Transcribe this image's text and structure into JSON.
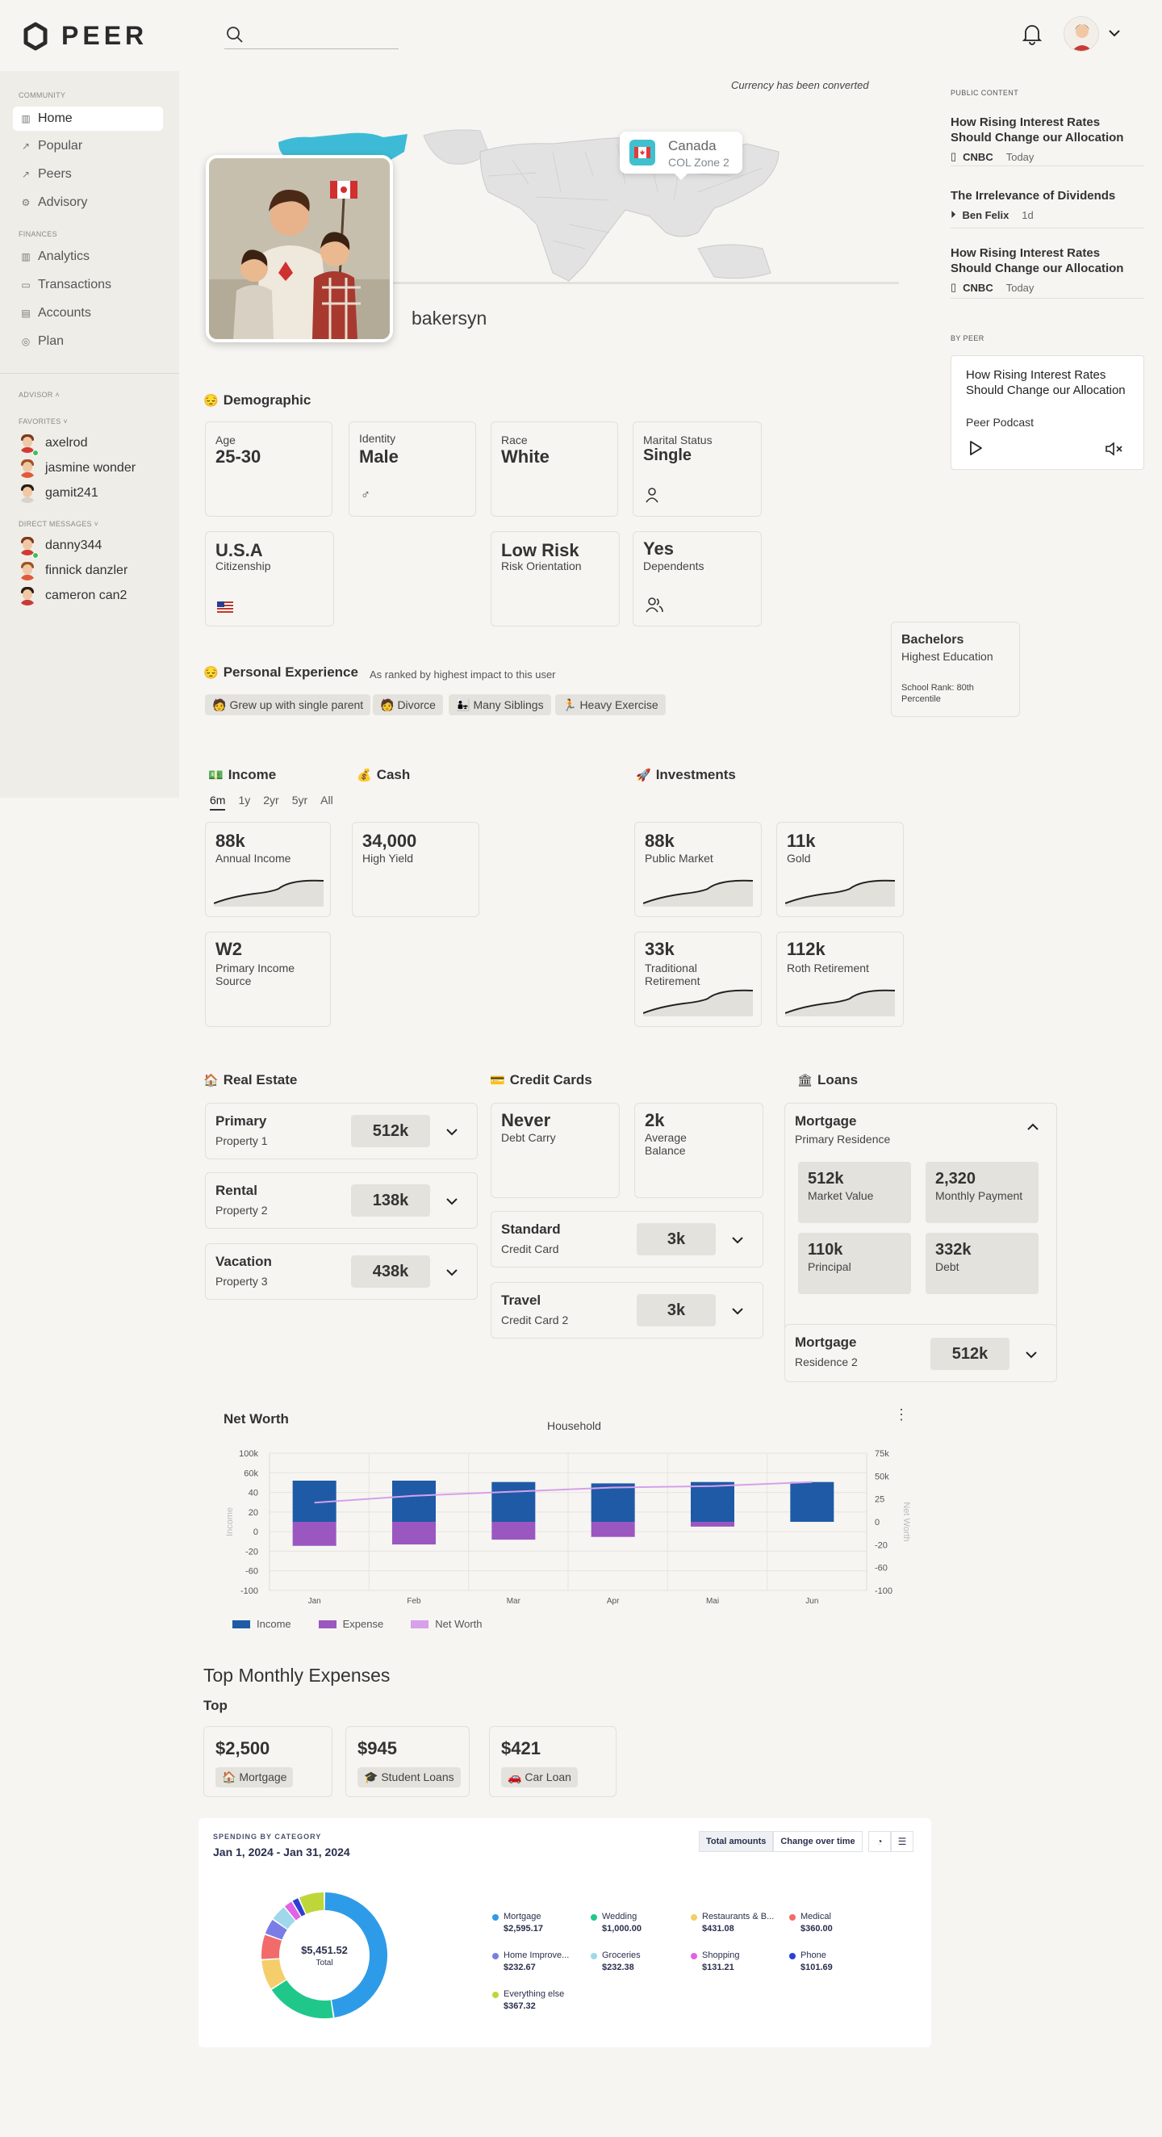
{
  "app": {
    "name": "PEER"
  },
  "header": {
    "search_placeholder": ""
  },
  "sidebar": {
    "community_label": "COMMUNITY",
    "community": [
      {
        "label": "Home",
        "icon": "bar-chart-icon",
        "active": true
      },
      {
        "label": "Popular",
        "icon": "trending-icon"
      },
      {
        "label": "Peers",
        "icon": "trending-icon"
      },
      {
        "label": "Advisory",
        "icon": "gear-icon"
      }
    ],
    "finances_label": "FINANCES",
    "finances": [
      {
        "label": "Analytics",
        "icon": "bar-chart-icon"
      },
      {
        "label": "Transactions",
        "icon": "card-icon"
      },
      {
        "label": "Accounts",
        "icon": "accounts-icon"
      },
      {
        "label": "Plan",
        "icon": "compass-icon"
      }
    ],
    "advisor_label": "ADVISOR",
    "favorites_label": "FAVORITES",
    "favorites": [
      "axelrod",
      "jasmine wonder",
      "gamit241"
    ],
    "dm_label": "DIRECT MESSAGES",
    "direct_messages": [
      "danny344",
      "finnick danzler",
      "cameron can2"
    ]
  },
  "profile": {
    "currency_note": "Currency has been converted",
    "country": "Canada",
    "col_zone": "COL Zone 2",
    "username": "bakersyn"
  },
  "demographic": {
    "title": "Demographic",
    "age_label": "Age",
    "age": "25-30",
    "identity_label": "Identity",
    "identity": "Male",
    "race_label": "Race",
    "race": "White",
    "marital_label": "Marital Status",
    "marital": "Single",
    "citizenship": "U.S.A",
    "citizenship_label": "Citizenship",
    "risk": "Low Risk",
    "risk_label": "Risk Orientation",
    "dependents": "Yes",
    "dependents_label": "Dependents",
    "education": "Bachelors",
    "education_label": "Highest Education",
    "school_rank": "School Rank: 80th Percentile"
  },
  "experience": {
    "title": "Personal Experience",
    "subtitle": "As ranked by highest impact to this user",
    "chips": [
      "Grew up with single parent",
      "Divorce",
      "Many Siblings",
      "Heavy Exercise"
    ]
  },
  "income": {
    "title": "Income",
    "tabs": [
      "6m",
      "1y",
      "2yr",
      "5yr",
      "All"
    ],
    "annual": "88k",
    "annual_label": "Annual Income",
    "source": "W2",
    "source_label": "Primary Income Source"
  },
  "cash": {
    "title": "Cash",
    "value": "34,000",
    "label": "High Yield"
  },
  "investments": {
    "title": "Investments",
    "items": [
      {
        "value": "88k",
        "label": "Public Market"
      },
      {
        "value": "11k",
        "label": "Gold"
      },
      {
        "value": "33k",
        "label": "Traditional Retirement"
      },
      {
        "value": "112k",
        "label": "Roth Retirement"
      }
    ]
  },
  "real_estate": {
    "title": "Real Estate",
    "items": [
      {
        "name": "Primary",
        "sub": "Property 1",
        "value": "512k"
      },
      {
        "name": "Rental",
        "sub": "Property 2",
        "value": "138k"
      },
      {
        "name": "Vacation",
        "sub": "Property 3",
        "value": "438k"
      }
    ]
  },
  "credit_cards": {
    "title": "Credit Cards",
    "carry": "Never",
    "carry_label": "Debt Carry",
    "balance": "2k",
    "balance_label": "Average Balance",
    "cards": [
      {
        "name": "Standard",
        "sub": "Credit Card",
        "value": "3k"
      },
      {
        "name": "Travel",
        "sub": "Credit Card 2",
        "value": "3k"
      }
    ]
  },
  "loans": {
    "title": "Loans",
    "mortgage1": {
      "name": "Mortgage",
      "sub": "Primary Residence"
    },
    "details": [
      {
        "value": "512k",
        "label": "Market Value"
      },
      {
        "value": "2,320",
        "label": "Monthly Payment"
      },
      {
        "value": "110k",
        "label": "Principal"
      },
      {
        "value": "332k",
        "label": "Debt"
      }
    ],
    "mortgage2": {
      "name": "Mortgage",
      "sub": "Residence 2",
      "value": "512k"
    }
  },
  "chart_data": {
    "type": "bar",
    "title": "Net Worth",
    "subtitle": "Household",
    "ylabel": "Income",
    "y2label": "Net Worth",
    "categories": [
      "Jan",
      "Feb",
      "Mar",
      "Apr",
      "Mai",
      "Jun"
    ],
    "y_ticks": [
      "100k",
      "60k",
      "40",
      "20",
      "0",
      "-20",
      "-60",
      "-100"
    ],
    "y2_ticks": [
      "75k",
      "50k",
      "25",
      "0",
      "-20",
      "-60",
      "-100"
    ],
    "ylim": [
      -100,
      100
    ],
    "series": [
      {
        "name": "Income",
        "color": "#1f5aa6",
        "values": [
          60,
          60,
          58,
          56,
          58,
          58
        ]
      },
      {
        "name": "Expense",
        "color": "#9b57c0",
        "values": [
          -35,
          -33,
          -26,
          -22,
          -7,
          0
        ]
      },
      {
        "name": "Net Worth",
        "color": "#d7a0ea",
        "values": [
          28,
          38,
          44,
          50,
          52,
          58
        ]
      }
    ]
  },
  "top_expenses": {
    "title": "Top Monthly Expenses",
    "subtitle": "Top",
    "items": [
      {
        "value": "$2,500",
        "label": "Mortgage",
        "emoji": "🏠"
      },
      {
        "value": "$945",
        "label": "Student Loans",
        "emoji": "🎓"
      },
      {
        "value": "$421",
        "label": "Car Loan",
        "emoji": "🚗"
      }
    ]
  },
  "spending": {
    "label": "SPENDING BY CATEGORY",
    "date": "Jan 1, 2024 - Jan 31, 2024",
    "tab_total": "Total amounts",
    "tab_change": "Change over time",
    "total": "$5,451.52",
    "total_label": "Total",
    "categories": [
      {
        "name": "Mortgage",
        "amount": "$2,595.17",
        "value": 2595.17,
        "color": "#2e9be8"
      },
      {
        "name": "Wedding",
        "amount": "$1,000.00",
        "value": 1000.0,
        "color": "#1fc88a"
      },
      {
        "name": "Restaurants & B...",
        "amount": "$431.08",
        "value": 431.08,
        "color": "#f5cd6a"
      },
      {
        "name": "Medical",
        "amount": "$360.00",
        "value": 360.0,
        "color": "#f26b6b"
      },
      {
        "name": "Home Improve...",
        "amount": "$232.67",
        "value": 232.67,
        "color": "#7b7de6"
      },
      {
        "name": "Groceries",
        "amount": "$232.38",
        "value": 232.38,
        "color": "#9ed8ea"
      },
      {
        "name": "Shopping",
        "amount": "$131.21",
        "value": 131.21,
        "color": "#e062e6"
      },
      {
        "name": "Phone",
        "amount": "$101.69",
        "value": 101.69,
        "color": "#2b3fd6"
      },
      {
        "name": "Everything else",
        "amount": "$367.32",
        "value": 367.32,
        "color": "#bfd63a"
      }
    ]
  },
  "right": {
    "public_label": "PUBLIC CONTENT",
    "articles": [
      {
        "title": "How Rising Interest Rates Should Change our Allocation",
        "source": "CNBC",
        "time": "Today",
        "icon": "document-icon"
      },
      {
        "title": "The Irrelevance of Dividends",
        "source": "Ben Felix",
        "time": "1d",
        "icon": "play-circle-icon"
      },
      {
        "title": "How Rising Interest Rates Should Change our Allocation",
        "source": "CNBC",
        "time": "Today",
        "icon": "document-icon"
      }
    ],
    "peer_label": "BY PEER",
    "podcast_title": "How Rising Interest Rates Should Change our Allocation",
    "podcast_source": "Peer Podcast"
  }
}
